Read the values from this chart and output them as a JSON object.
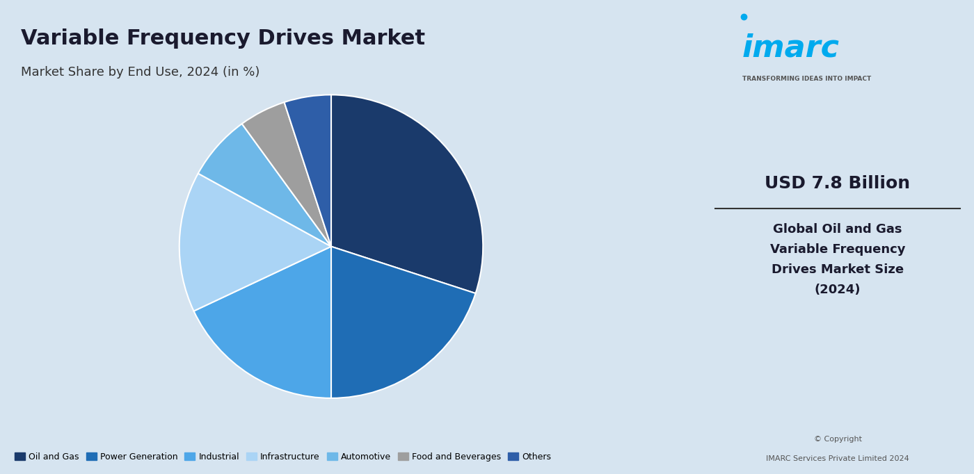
{
  "title": "Variable Frequency Drives Market",
  "subtitle": "Market Share by End Use, 2024 (in %)",
  "labels": [
    "Oil and Gas",
    "Power Generation",
    "Industrial",
    "Infrastructure",
    "Automotive",
    "Food and Beverages",
    "Others"
  ],
  "values": [
    30,
    20,
    18,
    15,
    7,
    5,
    5
  ],
  "colors": [
    "#1a3a6b",
    "#1f6db5",
    "#4da6e8",
    "#aad4f5",
    "#6eb8e8",
    "#9e9e9e",
    "#2e5ea8"
  ],
  "startangle": 90,
  "bg_color": "#d6e4f0",
  "right_panel_bg": "#ffffff",
  "usd_value": "USD 7.8 Billion",
  "right_desc_line1": "Global Oil and Gas",
  "right_desc_line2": "Variable Frequency",
  "right_desc_line3": "Drives Market Size",
  "right_desc_line4": "(2024)",
  "copyright_line1": "© Copyright",
  "copyright_line2": "IMARC Services Private Limited 2024",
  "transforming_text": "TRANSFORMING IDEAS INTO IMPACT"
}
